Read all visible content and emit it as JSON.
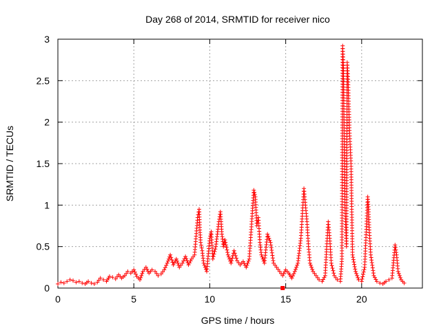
{
  "chart_data": {
    "type": "scatter",
    "title": "Day 268 of 2014, SRMTID for receiver nico",
    "xlabel": "GPS time / hours",
    "ylabel": "SRMTID / TECUs",
    "xlim": [
      0,
      24
    ],
    "ylim": [
      0,
      3
    ],
    "xticks": [
      0,
      5,
      10,
      15,
      20
    ],
    "xtick_labels": [
      "0",
      "5",
      "10",
      "15",
      "20"
    ],
    "yticks": [
      0,
      0.5,
      1,
      1.5,
      2,
      2.5,
      3
    ],
    "ytick_labels": [
      "0",
      "0.5",
      "1",
      "1.5",
      "2",
      "2.5",
      "3"
    ],
    "grid": true,
    "marker": "plus",
    "color": "#ff0000",
    "series": [
      {
        "name": "SRMTID",
        "x": [
          0.0,
          0.2,
          0.4,
          0.6,
          0.8,
          1.0,
          1.2,
          1.4,
          1.6,
          1.8,
          2.0,
          2.2,
          2.4,
          2.6,
          2.8,
          3.0,
          3.2,
          3.4,
          3.6,
          3.8,
          4.0,
          4.2,
          4.4,
          4.6,
          4.8,
          5.0,
          5.2,
          5.4,
          5.6,
          5.8,
          6.0,
          6.2,
          6.4,
          6.6,
          6.8,
          7.0,
          7.2,
          7.4,
          7.6,
          7.8,
          8.0,
          8.2,
          8.4,
          8.6,
          8.8,
          9.0,
          9.2,
          9.3,
          9.35,
          9.4,
          9.5,
          9.6,
          9.8,
          10.0,
          10.1,
          10.2,
          10.4,
          10.6,
          10.7,
          10.8,
          10.9,
          11.0,
          11.2,
          11.4,
          11.6,
          11.8,
          12.0,
          12.2,
          12.4,
          12.6,
          12.8,
          12.9,
          13.0,
          13.1,
          13.2,
          13.3,
          13.4,
          13.6,
          13.8,
          14.0,
          14.2,
          14.4,
          14.6,
          14.8,
          15.0,
          15.2,
          15.4,
          15.6,
          15.8,
          16.0,
          16.1,
          16.2,
          16.3,
          16.4,
          16.5,
          16.6,
          16.8,
          17.0,
          17.2,
          17.4,
          17.6,
          17.7,
          17.8,
          17.9,
          18.0,
          18.2,
          18.4,
          18.6,
          18.7,
          18.75,
          18.8,
          18.85,
          18.9,
          19.0,
          19.05,
          19.1,
          19.15,
          19.2,
          19.3,
          19.4,
          19.6,
          19.8,
          20.0,
          20.2,
          20.4,
          20.45,
          20.5,
          20.6,
          20.8,
          21.0,
          21.2,
          21.4,
          21.6,
          21.8,
          22.0,
          22.2,
          22.3,
          22.4,
          22.6,
          22.8
        ],
        "y": [
          0.05,
          0.07,
          0.06,
          0.08,
          0.1,
          0.09,
          0.07,
          0.08,
          0.06,
          0.05,
          0.08,
          0.06,
          0.05,
          0.07,
          0.12,
          0.1,
          0.08,
          0.14,
          0.13,
          0.11,
          0.16,
          0.12,
          0.15,
          0.2,
          0.18,
          0.22,
          0.14,
          0.1,
          0.2,
          0.25,
          0.18,
          0.22,
          0.2,
          0.15,
          0.17,
          0.22,
          0.3,
          0.4,
          0.28,
          0.35,
          0.25,
          0.3,
          0.38,
          0.28,
          0.35,
          0.4,
          0.85,
          0.95,
          0.7,
          0.55,
          0.45,
          0.3,
          0.2,
          0.6,
          0.68,
          0.35,
          0.5,
          0.8,
          0.92,
          0.65,
          0.5,
          0.58,
          0.4,
          0.3,
          0.45,
          0.33,
          0.28,
          0.32,
          0.25,
          0.35,
          0.9,
          1.18,
          1.1,
          0.75,
          0.85,
          0.55,
          0.4,
          0.3,
          0.65,
          0.55,
          0.3,
          0.25,
          0.2,
          0.15,
          0.22,
          0.18,
          0.12,
          0.2,
          0.3,
          0.6,
          0.9,
          1.2,
          1.0,
          0.8,
          0.5,
          0.3,
          0.2,
          0.15,
          0.1,
          0.08,
          0.15,
          0.5,
          0.8,
          0.6,
          0.3,
          0.15,
          0.1,
          0.08,
          0.35,
          2.92,
          2.65,
          1.8,
          1.0,
          0.5,
          2.72,
          2.55,
          2.22,
          1.9,
          1.5,
          0.4,
          0.2,
          0.1,
          0.08,
          0.25,
          1.1,
          0.95,
          0.7,
          0.4,
          0.15,
          0.08,
          0.06,
          0.05,
          0.08,
          0.1,
          0.12,
          0.52,
          0.4,
          0.2,
          0.1,
          0.06
        ]
      }
    ],
    "outlier": {
      "x": 14.8,
      "y": 0.0
    }
  }
}
